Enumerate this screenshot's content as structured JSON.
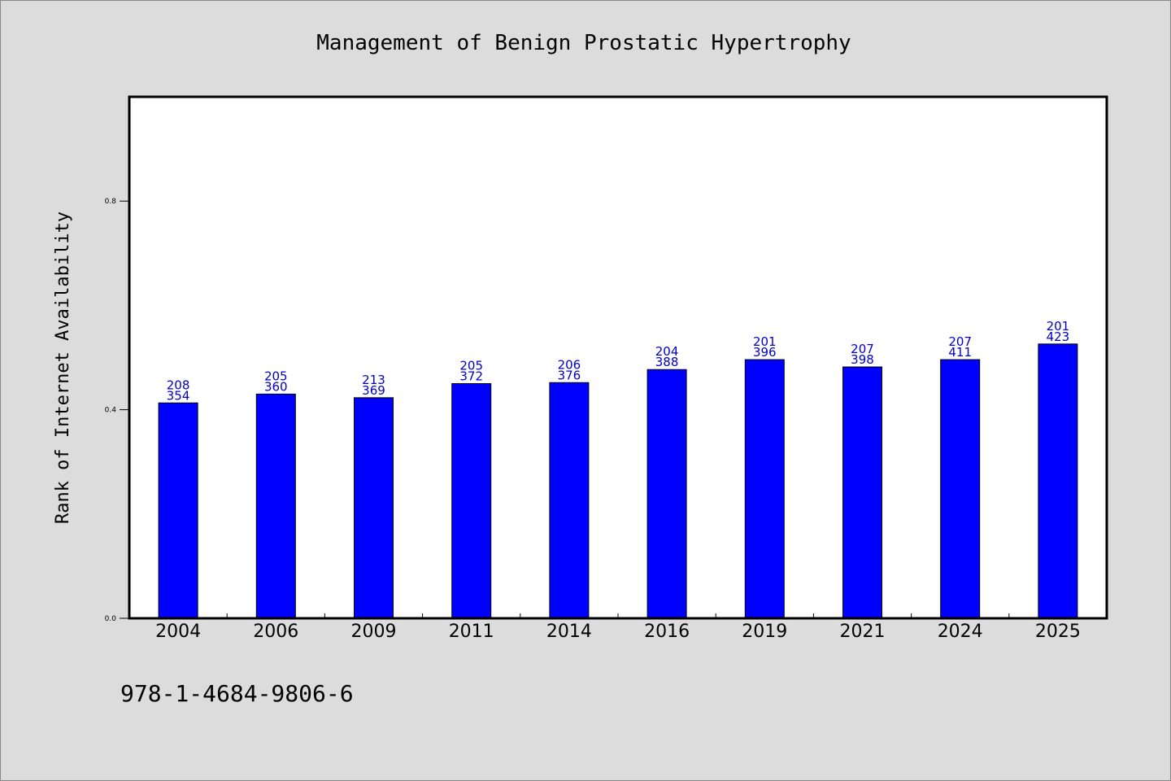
{
  "chart_data": {
    "type": "bar",
    "title": "Management of Benign Prostatic Hypertrophy",
    "xlabel": "",
    "ylabel": "Rank of Internet Availability",
    "categories": [
      "2004",
      "2006",
      "2009",
      "2011",
      "2014",
      "2016",
      "2019",
      "2021",
      "2024",
      "2025"
    ],
    "values": [
      0.413,
      0.43,
      0.423,
      0.45,
      0.452,
      0.477,
      0.496,
      0.482,
      0.496,
      0.526
    ],
    "data_labels": [
      [
        "208",
        "354"
      ],
      [
        "205",
        "360"
      ],
      [
        "213",
        "369"
      ],
      [
        "205",
        "372"
      ],
      [
        "206",
        "376"
      ],
      [
        "204",
        "388"
      ],
      [
        "201",
        "396"
      ],
      [
        "207",
        "398"
      ],
      [
        "207",
        "411"
      ],
      [
        "201",
        "423"
      ]
    ],
    "yticks": [
      0.0,
      0.4,
      0.8
    ],
    "ytick_labels": [
      "0.0",
      "0.4",
      "0.8"
    ],
    "ylim": [
      0,
      1.0
    ],
    "grid": false,
    "legend": "none",
    "bar_color": "#0000ff",
    "label_color": "#0000c8",
    "background": "#dcdcdc",
    "plot_background": "#ffffff"
  },
  "footnote": "978-1-4684-9806-6"
}
